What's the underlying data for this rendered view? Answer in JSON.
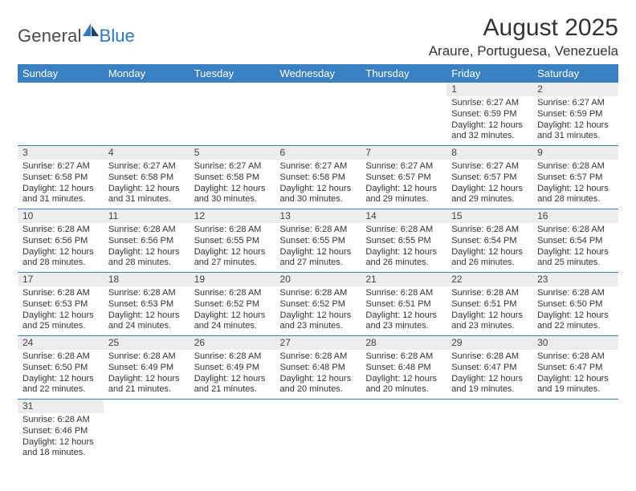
{
  "logo": {
    "general": "General",
    "blue": "Blue"
  },
  "title": "August 2025",
  "location": "Araure, Portuguesa, Venezuela",
  "colors": {
    "header_bg": "#3a81c4",
    "header_fg": "#ffffff",
    "daynum_bg": "#ededed",
    "rule": "#3a81c4",
    "logo_blue": "#2f78c2"
  },
  "weekday_labels": [
    "Sunday",
    "Monday",
    "Tuesday",
    "Wednesday",
    "Thursday",
    "Friday",
    "Saturday"
  ],
  "weeks": [
    [
      null,
      null,
      null,
      null,
      null,
      {
        "n": "1",
        "sr": "Sunrise: 6:27 AM",
        "ss": "Sunset: 6:59 PM",
        "d1": "Daylight: 12 hours",
        "d2": "and 32 minutes."
      },
      {
        "n": "2",
        "sr": "Sunrise: 6:27 AM",
        "ss": "Sunset: 6:59 PM",
        "d1": "Daylight: 12 hours",
        "d2": "and 31 minutes."
      }
    ],
    [
      {
        "n": "3",
        "sr": "Sunrise: 6:27 AM",
        "ss": "Sunset: 6:58 PM",
        "d1": "Daylight: 12 hours",
        "d2": "and 31 minutes."
      },
      {
        "n": "4",
        "sr": "Sunrise: 6:27 AM",
        "ss": "Sunset: 6:58 PM",
        "d1": "Daylight: 12 hours",
        "d2": "and 31 minutes."
      },
      {
        "n": "5",
        "sr": "Sunrise: 6:27 AM",
        "ss": "Sunset: 6:58 PM",
        "d1": "Daylight: 12 hours",
        "d2": "and 30 minutes."
      },
      {
        "n": "6",
        "sr": "Sunrise: 6:27 AM",
        "ss": "Sunset: 6:58 PM",
        "d1": "Daylight: 12 hours",
        "d2": "and 30 minutes."
      },
      {
        "n": "7",
        "sr": "Sunrise: 6:27 AM",
        "ss": "Sunset: 6:57 PM",
        "d1": "Daylight: 12 hours",
        "d2": "and 29 minutes."
      },
      {
        "n": "8",
        "sr": "Sunrise: 6:27 AM",
        "ss": "Sunset: 6:57 PM",
        "d1": "Daylight: 12 hours",
        "d2": "and 29 minutes."
      },
      {
        "n": "9",
        "sr": "Sunrise: 6:28 AM",
        "ss": "Sunset: 6:57 PM",
        "d1": "Daylight: 12 hours",
        "d2": "and 28 minutes."
      }
    ],
    [
      {
        "n": "10",
        "sr": "Sunrise: 6:28 AM",
        "ss": "Sunset: 6:56 PM",
        "d1": "Daylight: 12 hours",
        "d2": "and 28 minutes."
      },
      {
        "n": "11",
        "sr": "Sunrise: 6:28 AM",
        "ss": "Sunset: 6:56 PM",
        "d1": "Daylight: 12 hours",
        "d2": "and 28 minutes."
      },
      {
        "n": "12",
        "sr": "Sunrise: 6:28 AM",
        "ss": "Sunset: 6:55 PM",
        "d1": "Daylight: 12 hours",
        "d2": "and 27 minutes."
      },
      {
        "n": "13",
        "sr": "Sunrise: 6:28 AM",
        "ss": "Sunset: 6:55 PM",
        "d1": "Daylight: 12 hours",
        "d2": "and 27 minutes."
      },
      {
        "n": "14",
        "sr": "Sunrise: 6:28 AM",
        "ss": "Sunset: 6:55 PM",
        "d1": "Daylight: 12 hours",
        "d2": "and 26 minutes."
      },
      {
        "n": "15",
        "sr": "Sunrise: 6:28 AM",
        "ss": "Sunset: 6:54 PM",
        "d1": "Daylight: 12 hours",
        "d2": "and 26 minutes."
      },
      {
        "n": "16",
        "sr": "Sunrise: 6:28 AM",
        "ss": "Sunset: 6:54 PM",
        "d1": "Daylight: 12 hours",
        "d2": "and 25 minutes."
      }
    ],
    [
      {
        "n": "17",
        "sr": "Sunrise: 6:28 AM",
        "ss": "Sunset: 6:53 PM",
        "d1": "Daylight: 12 hours",
        "d2": "and 25 minutes."
      },
      {
        "n": "18",
        "sr": "Sunrise: 6:28 AM",
        "ss": "Sunset: 6:53 PM",
        "d1": "Daylight: 12 hours",
        "d2": "and 24 minutes."
      },
      {
        "n": "19",
        "sr": "Sunrise: 6:28 AM",
        "ss": "Sunset: 6:52 PM",
        "d1": "Daylight: 12 hours",
        "d2": "and 24 minutes."
      },
      {
        "n": "20",
        "sr": "Sunrise: 6:28 AM",
        "ss": "Sunset: 6:52 PM",
        "d1": "Daylight: 12 hours",
        "d2": "and 23 minutes."
      },
      {
        "n": "21",
        "sr": "Sunrise: 6:28 AM",
        "ss": "Sunset: 6:51 PM",
        "d1": "Daylight: 12 hours",
        "d2": "and 23 minutes."
      },
      {
        "n": "22",
        "sr": "Sunrise: 6:28 AM",
        "ss": "Sunset: 6:51 PM",
        "d1": "Daylight: 12 hours",
        "d2": "and 23 minutes."
      },
      {
        "n": "23",
        "sr": "Sunrise: 6:28 AM",
        "ss": "Sunset: 6:50 PM",
        "d1": "Daylight: 12 hours",
        "d2": "and 22 minutes."
      }
    ],
    [
      {
        "n": "24",
        "sr": "Sunrise: 6:28 AM",
        "ss": "Sunset: 6:50 PM",
        "d1": "Daylight: 12 hours",
        "d2": "and 22 minutes."
      },
      {
        "n": "25",
        "sr": "Sunrise: 6:28 AM",
        "ss": "Sunset: 6:49 PM",
        "d1": "Daylight: 12 hours",
        "d2": "and 21 minutes."
      },
      {
        "n": "26",
        "sr": "Sunrise: 6:28 AM",
        "ss": "Sunset: 6:49 PM",
        "d1": "Daylight: 12 hours",
        "d2": "and 21 minutes."
      },
      {
        "n": "27",
        "sr": "Sunrise: 6:28 AM",
        "ss": "Sunset: 6:48 PM",
        "d1": "Daylight: 12 hours",
        "d2": "and 20 minutes."
      },
      {
        "n": "28",
        "sr": "Sunrise: 6:28 AM",
        "ss": "Sunset: 6:48 PM",
        "d1": "Daylight: 12 hours",
        "d2": "and 20 minutes."
      },
      {
        "n": "29",
        "sr": "Sunrise: 6:28 AM",
        "ss": "Sunset: 6:47 PM",
        "d1": "Daylight: 12 hours",
        "d2": "and 19 minutes."
      },
      {
        "n": "30",
        "sr": "Sunrise: 6:28 AM",
        "ss": "Sunset: 6:47 PM",
        "d1": "Daylight: 12 hours",
        "d2": "and 19 minutes."
      }
    ],
    [
      {
        "n": "31",
        "sr": "Sunrise: 6:28 AM",
        "ss": "Sunset: 6:46 PM",
        "d1": "Daylight: 12 hours",
        "d2": "and 18 minutes."
      },
      null,
      null,
      null,
      null,
      null,
      null
    ]
  ]
}
